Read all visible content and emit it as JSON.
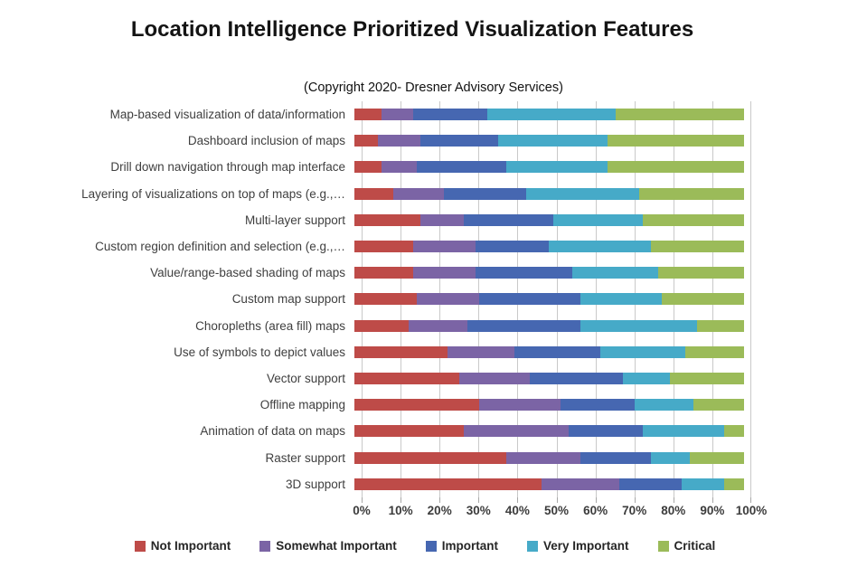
{
  "chart": {
    "title": "Location Intelligence Prioritized Visualization Features",
    "subtitle": "(Copyright 2020- Dresner Advisory Services)"
  },
  "chart_data": {
    "type": "bar",
    "orientation": "horizontal",
    "stacked": true,
    "stacked_total": 100,
    "title": "Location Intelligence Prioritized Visualization Features",
    "subtitle": "(Copyright 2020- Dresner Advisory Services)",
    "xlabel": "",
    "ylabel": "",
    "xlim": [
      0,
      100
    ],
    "x_tick_labels": [
      "0%",
      "10%",
      "20%",
      "30%",
      "40%",
      "50%",
      "60%",
      "70%",
      "80%",
      "90%",
      "100%"
    ],
    "grid": "vertical",
    "legend_position": "bottom",
    "categories": [
      "Map-based visualization of data/information",
      "Dashboard inclusion of maps",
      "Drill down navigation through map interface",
      "Layering of visualizations on top of maps (e.g.,…",
      "Multi-layer support",
      "Custom region definition and selection (e.g.,…",
      "Value/range-based shading of maps",
      "Custom map support",
      "Choropleths (area fill) maps",
      "Use of symbols to depict values",
      "Vector support",
      "Offline mapping",
      "Animation of data on maps",
      "Raster support",
      "3D support"
    ],
    "series": [
      {
        "name": "Not Important",
        "color": "#be4b48",
        "values": [
          7,
          6,
          7,
          10,
          17,
          15,
          15,
          16,
          14,
          24,
          27,
          32,
          28,
          39,
          48
        ]
      },
      {
        "name": "Somewhat Important",
        "color": "#7b64a5",
        "values": [
          8,
          11,
          9,
          13,
          11,
          16,
          16,
          16,
          15,
          17,
          18,
          21,
          27,
          19,
          20
        ]
      },
      {
        "name": "Important",
        "color": "#4667b1",
        "values": [
          19,
          20,
          23,
          21,
          23,
          19,
          25,
          26,
          29,
          22,
          24,
          19,
          19,
          18,
          16
        ]
      },
      {
        "name": "Very Important",
        "color": "#46aac8",
        "values": [
          33,
          28,
          26,
          29,
          23,
          26,
          22,
          21,
          30,
          22,
          12,
          15,
          21,
          10,
          11
        ]
      },
      {
        "name": "Critical",
        "color": "#9bbb59",
        "values": [
          33,
          35,
          35,
          27,
          26,
          24,
          22,
          21,
          12,
          15,
          19,
          13,
          5,
          14,
          5
        ]
      }
    ]
  }
}
